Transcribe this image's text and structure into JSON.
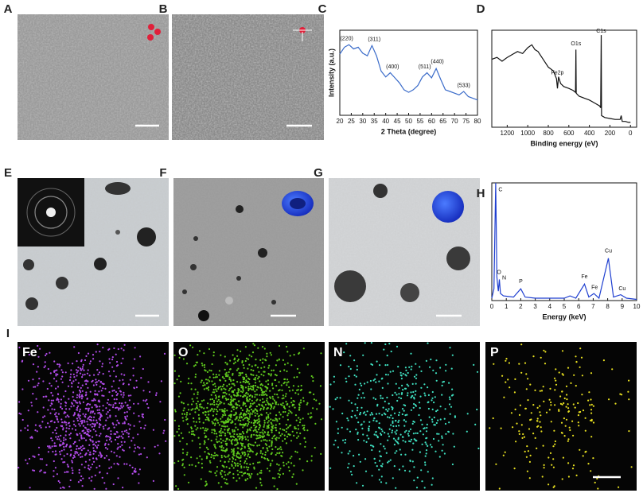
{
  "panels": [
    "A",
    "B",
    "C",
    "D",
    "E",
    "F",
    "G",
    "H",
    "I"
  ],
  "maps": [
    "Fe",
    "O",
    "N",
    "P"
  ],
  "chart_data": [
    {
      "type": "line",
      "x_label": "2 Theta (degree)",
      "y_label": "Intensity (a.u.)",
      "x": [
        20,
        22,
        24,
        26,
        28,
        30,
        32,
        34,
        36,
        38,
        40,
        42,
        44,
        46,
        48,
        50,
        52,
        54,
        56,
        58,
        60,
        62,
        64,
        66,
        68,
        70,
        72,
        74,
        76,
        78,
        80
      ],
      "series": [
        {
          "color": "#3a6bc9",
          "values": [
            72,
            80,
            83,
            78,
            80,
            73,
            70,
            82,
            70,
            52,
            45,
            50,
            44,
            38,
            30,
            27,
            30,
            35,
            45,
            50,
            44,
            55,
            42,
            30,
            28,
            26,
            24,
            28,
            22,
            20,
            18
          ]
        }
      ],
      "xlim": [
        20,
        80
      ],
      "ylim": [
        0,
        100
      ],
      "xticks": [
        20,
        25,
        30,
        35,
        40,
        45,
        50,
        55,
        60,
        65,
        70,
        75,
        80
      ],
      "annotations": [
        {
          "text": "(220)",
          "x": 23,
          "y": 90
        },
        {
          "text": "(311)",
          "x": 35,
          "y": 89
        },
        {
          "text": "(400)",
          "x": 43,
          "y": 57
        },
        {
          "text": "(511)",
          "x": 57,
          "y": 57
        },
        {
          "text": "(440)",
          "x": 62.5,
          "y": 63
        },
        {
          "text": "(533)",
          "x": 74,
          "y": 35
        }
      ]
    },
    {
      "type": "line",
      "x_label": "Binding energy (eV)",
      "x": [
        1350,
        1300,
        1250,
        1200,
        1150,
        1100,
        1050,
        1000,
        960,
        930,
        900,
        850,
        800,
        750,
        720,
        711,
        700,
        680,
        650,
        600,
        560,
        535,
        531,
        528,
        500,
        450,
        400,
        350,
        300,
        290,
        285,
        282,
        250,
        200,
        150,
        100,
        90,
        80,
        50,
        20,
        0
      ],
      "series": [
        {
          "color": "#111111",
          "values": [
            70,
            72,
            68,
            72,
            75,
            78,
            76,
            82,
            85,
            80,
            78,
            70,
            62,
            58,
            50,
            40,
            52,
            45,
            42,
            40,
            38,
            36,
            80,
            35,
            32,
            30,
            28,
            25,
            22,
            20,
            95,
            12,
            10,
            9,
            8,
            8,
            12,
            6,
            6,
            5,
            5
          ]
        }
      ],
      "xlim": [
        1350,
        -60
      ],
      "ylim": [
        0,
        100
      ],
      "xticks": [
        1200,
        1000,
        800,
        600,
        400,
        200,
        0
      ],
      "annotations": [
        {
          "text": "C1s",
          "x": 285,
          "y": 99
        },
        {
          "text": "O1s",
          "x": 530,
          "y": 86
        },
        {
          "text": "Fe2p",
          "x": 711,
          "y": 56
        }
      ]
    },
    {
      "type": "line",
      "x_label": "Energy (keV)",
      "x": [
        0,
        0.15,
        0.27,
        0.35,
        0.39,
        0.45,
        0.52,
        0.6,
        0.8,
        1.5,
        2.0,
        2.3,
        3,
        5,
        5.4,
        5.8,
        6.4,
        6.7,
        7.05,
        7.4,
        8.05,
        8.4,
        8.9,
        9.3,
        10
      ],
      "series": [
        {
          "color": "#1f3fd0",
          "values": [
            2,
            10,
            100,
            20,
            15,
            8,
            18,
            6,
            4,
            3,
            10,
            3,
            2,
            2,
            4,
            2,
            14,
            3,
            6,
            2,
            36,
            3,
            5,
            2,
            1
          ]
        }
      ],
      "xlim": [
        0,
        10
      ],
      "ylim": [
        0,
        100
      ],
      "xticks": [
        0,
        1,
        2,
        3,
        4,
        5,
        6,
        7,
        8,
        9,
        10
      ],
      "annotations": [
        {
          "text": "C",
          "x": 0.6,
          "y": 94
        },
        {
          "text": "O",
          "x": 0.5,
          "y": 24
        },
        {
          "text": "N",
          "x": 0.85,
          "y": 19
        },
        {
          "text": "P",
          "x": 2.0,
          "y": 16
        },
        {
          "text": "Fe",
          "x": 6.4,
          "y": 20
        },
        {
          "text": "Fe",
          "x": 7.1,
          "y": 11
        },
        {
          "text": "Cu",
          "x": 8.05,
          "y": 42
        },
        {
          "text": "Cu",
          "x": 9.0,
          "y": 10
        }
      ]
    }
  ]
}
